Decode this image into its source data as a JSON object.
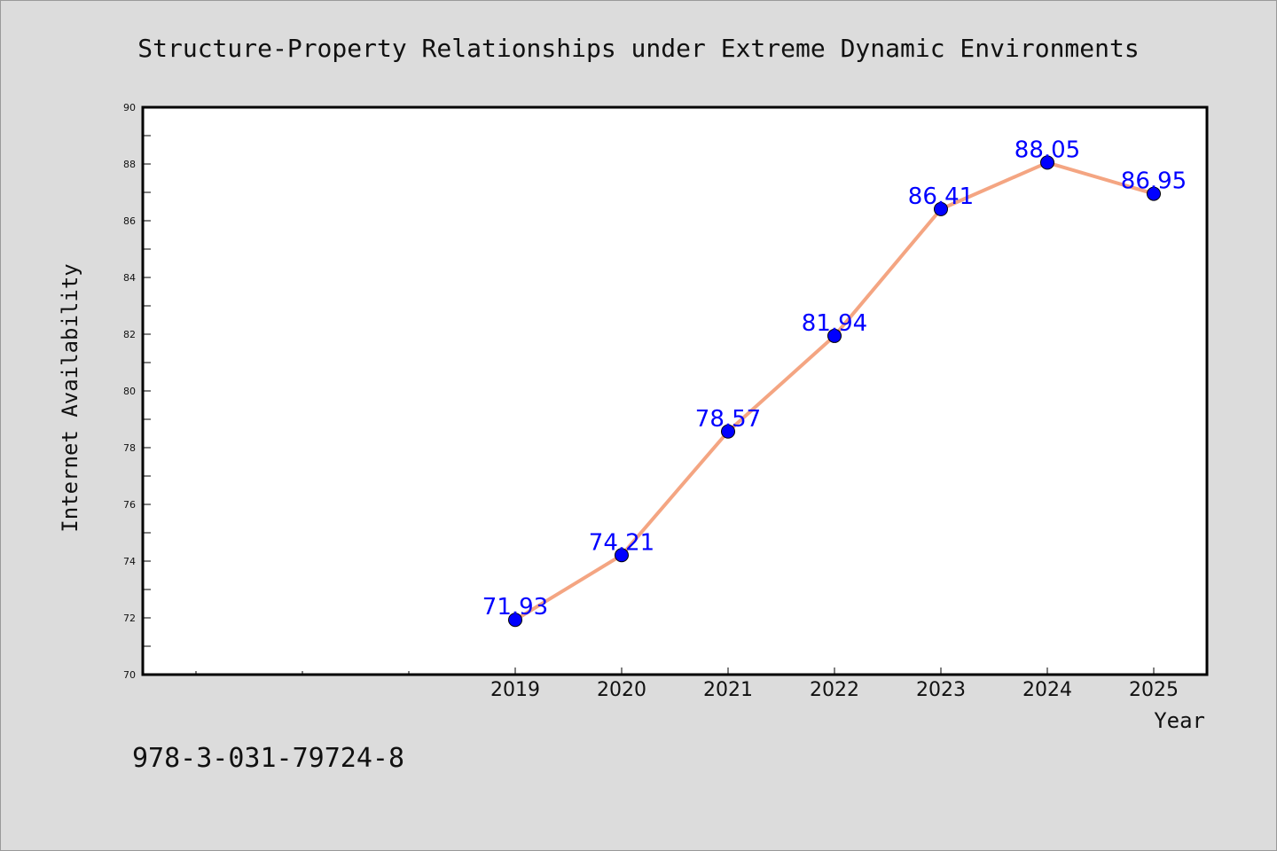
{
  "chart_data": {
    "type": "line",
    "title": "Structure-Property Relationships under Extreme Dynamic Environments",
    "xlabel": "Year",
    "ylabel": "Internet Availability",
    "categories": [
      "2019",
      "2020",
      "2021",
      "2022",
      "2023",
      "2024",
      "2025"
    ],
    "series": [
      {
        "values": [
          71.93,
          74.21,
          78.57,
          81.94,
          86.41,
          88.05,
          86.95
        ],
        "labels": [
          "71.93",
          "74.21",
          "78.57",
          "81.94",
          "86.41",
          "88.05",
          "86.95"
        ]
      }
    ],
    "ylim": [
      70,
      90
    ],
    "yticks": [
      "70",
      "72",
      "74",
      "76",
      "78",
      "80",
      "82",
      "84",
      "86",
      "88",
      "90"
    ],
    "grid": false,
    "line_color": "#f4a582",
    "marker_color": "#0000ff",
    "label_color": "#0000ff"
  },
  "footer": {
    "isbn": "978-3-031-79724-8"
  }
}
